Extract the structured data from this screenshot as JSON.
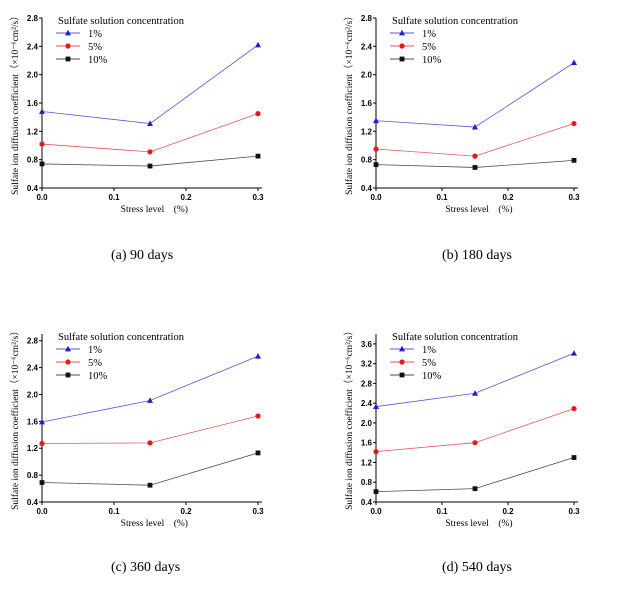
{
  "chart_data": [
    {
      "type": "line",
      "caption": "(a) 90 days",
      "xlabel": "Stress level　(%)",
      "ylabel": "Sulfate ion diffusion coefficient（×10⁻⁶cm²/s）",
      "legend_title": "Sulfate solution concentration",
      "x": [
        0.0,
        0.15,
        0.3
      ],
      "xlim": [
        0.0,
        0.3
      ],
      "xticks": [
        "0.0",
        "0.1",
        "0.2",
        "0.3"
      ],
      "ylim": [
        0.4,
        2.8
      ],
      "yticks": [
        "0.4",
        "0.8",
        "1.2",
        "1.6",
        "2.0",
        "2.4",
        "2.8"
      ],
      "series": [
        {
          "name": "1%",
          "color": "#1f1fcf",
          "marker": "triangle",
          "values": [
            1.48,
            1.31,
            2.42
          ]
        },
        {
          "name": "5%",
          "color": "#e8191c",
          "marker": "circle",
          "values": [
            1.02,
            0.91,
            1.45
          ]
        },
        {
          "name": "10%",
          "color": "#111111",
          "marker": "square",
          "values": [
            0.74,
            0.71,
            0.85
          ]
        }
      ]
    },
    {
      "type": "line",
      "caption": "(b) 180 days",
      "xlabel": "Stress level　(%)",
      "ylabel": "Sulfate ion diffusion coefficient（×10⁻⁶cm²/s）",
      "legend_title": "Sulfate solution concentration",
      "x": [
        0.0,
        0.15,
        0.3
      ],
      "xlim": [
        0.0,
        0.3
      ],
      "xticks": [
        "0.0",
        "0.1",
        "0.2",
        "0.3"
      ],
      "ylim": [
        0.4,
        2.8
      ],
      "yticks": [
        "0.4",
        "0.8",
        "1.2",
        "1.6",
        "2.0",
        "2.4",
        "2.8"
      ],
      "series": [
        {
          "name": "1%",
          "color": "#1f1fcf",
          "marker": "triangle",
          "values": [
            1.35,
            1.26,
            2.17
          ]
        },
        {
          "name": "5%",
          "color": "#e8191c",
          "marker": "circle",
          "values": [
            0.95,
            0.85,
            1.31
          ]
        },
        {
          "name": "10%",
          "color": "#111111",
          "marker": "square",
          "values": [
            0.73,
            0.69,
            0.79
          ]
        }
      ]
    },
    {
      "type": "line",
      "caption": "(c) 360 days",
      "xlabel": "Stress level　(%)",
      "ylabel": "Sulfate ion diffusion coefficient（×10⁻⁶cm²/s）",
      "legend_title": "Sulfate solution concentration",
      "x": [
        0.0,
        0.15,
        0.3
      ],
      "xlim": [
        0.0,
        0.3
      ],
      "xticks": [
        "0.0",
        "0.1",
        "0.2",
        "0.3"
      ],
      "ylim": [
        0.4,
        2.9
      ],
      "yticks": [
        "0.4",
        "0.8",
        "1.2",
        "1.6",
        "2.0",
        "2.4",
        "2.8"
      ],
      "series": [
        {
          "name": "1%",
          "color": "#1f1fcf",
          "marker": "triangle",
          "values": [
            1.59,
            1.91,
            2.57
          ]
        },
        {
          "name": "5%",
          "color": "#e8191c",
          "marker": "circle",
          "values": [
            1.27,
            1.28,
            1.68
          ]
        },
        {
          "name": "10%",
          "color": "#111111",
          "marker": "square",
          "values": [
            0.69,
            0.65,
            1.13
          ]
        }
      ]
    },
    {
      "type": "line",
      "caption": "(d) 540 days",
      "xlabel": "Stress level　(%)",
      "ylabel": "Sulfate ion diffusion coefficient（×10⁻⁶cm²/s）",
      "legend_title": "Sulfate solution concentration",
      "x": [
        0.0,
        0.15,
        0.3
      ],
      "xlim": [
        0.0,
        0.3
      ],
      "xticks": [
        "0.0",
        "0.1",
        "0.2",
        "0.3"
      ],
      "ylim": [
        0.4,
        3.8
      ],
      "yticks": [
        "0.4",
        "0.8",
        "1.2",
        "1.6",
        "2.0",
        "2.4",
        "2.8",
        "3.2",
        "3.6"
      ],
      "series": [
        {
          "name": "1%",
          "color": "#1f1fcf",
          "marker": "triangle",
          "values": [
            2.33,
            2.6,
            3.41
          ]
        },
        {
          "name": "5%",
          "color": "#e8191c",
          "marker": "circle",
          "values": [
            1.42,
            1.6,
            2.29
          ]
        },
        {
          "name": "10%",
          "color": "#111111",
          "marker": "square",
          "values": [
            0.61,
            0.67,
            1.3
          ]
        }
      ]
    }
  ]
}
